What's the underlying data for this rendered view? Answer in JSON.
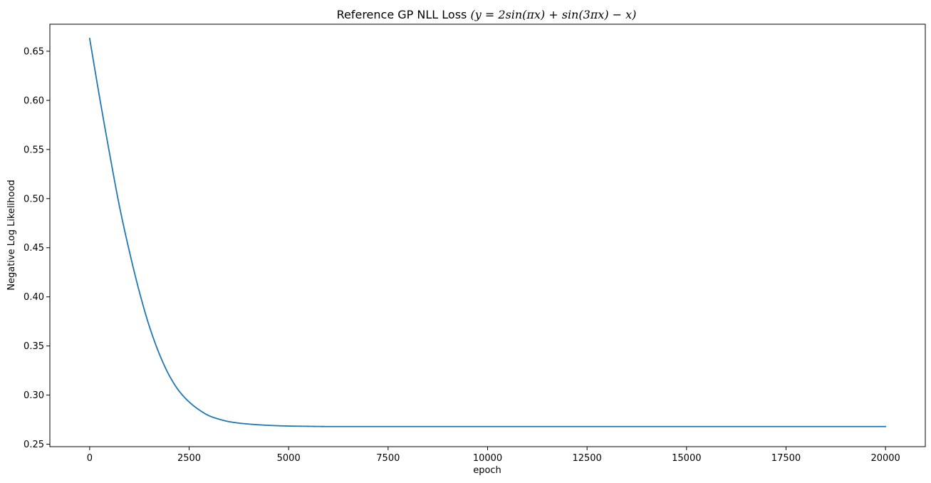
{
  "chart_data": {
    "type": "line",
    "title_text": "Reference GP NLL Loss ",
    "title_math": "(y = 2sin(πx) + sin(3πx) − x)",
    "xlabel": "epoch",
    "ylabel": "Negative Log Likelihood",
    "xlim": [
      -1000,
      21000
    ],
    "ylim": [
      0.2475,
      0.6775
    ],
    "x_ticks": [
      0,
      2500,
      5000,
      7500,
      10000,
      12500,
      15000,
      17500,
      20000
    ],
    "x_tick_labels": [
      "0",
      "2500",
      "5000",
      "7500",
      "10000",
      "12500",
      "15000",
      "17500",
      "20000"
    ],
    "y_ticks": [
      0.25,
      0.3,
      0.35,
      0.4,
      0.45,
      0.5,
      0.55,
      0.6,
      0.65
    ],
    "y_tick_labels": [
      "0.25",
      "0.30",
      "0.35",
      "0.40",
      "0.45",
      "0.50",
      "0.55",
      "0.60",
      "0.65"
    ],
    "grid": false,
    "series": [
      {
        "color": "#1f77b4",
        "x": [
          0,
          250,
          500,
          750,
          1000,
          1250,
          1500,
          1750,
          2000,
          2250,
          2500,
          2750,
          3000,
          3250,
          3500,
          3750,
          4000,
          4500,
          5000,
          5500,
          6000,
          7000,
          8000,
          10000,
          12500,
          15000,
          17500,
          20000
        ],
        "y": [
          0.663,
          0.603,
          0.546,
          0.492,
          0.446,
          0.405,
          0.37,
          0.342,
          0.32,
          0.304,
          0.293,
          0.285,
          0.279,
          0.2755,
          0.273,
          0.2715,
          0.2705,
          0.2692,
          0.2685,
          0.2682,
          0.268,
          0.268,
          0.268,
          0.268,
          0.268,
          0.268,
          0.268,
          0.268
        ]
      }
    ]
  }
}
